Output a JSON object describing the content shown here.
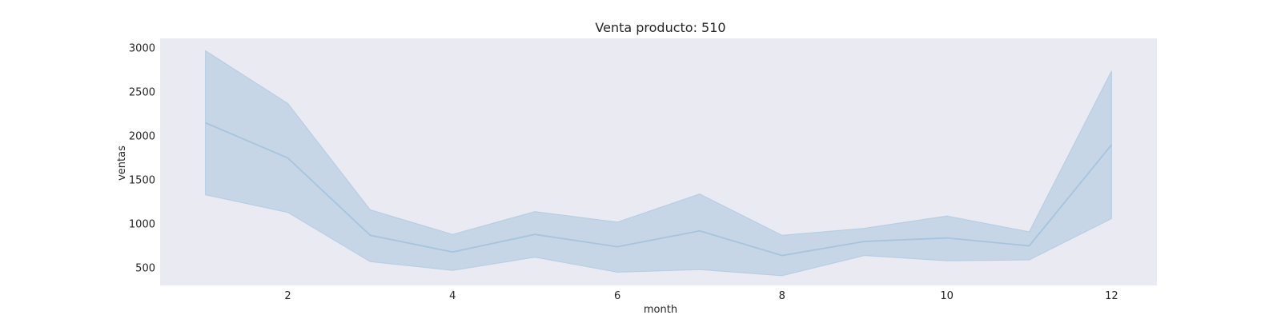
{
  "chart_data": {
    "type": "line",
    "title": "Venta producto: 510",
    "xlabel": "month",
    "ylabel": "ventas",
    "xlim": [
      0.45,
      12.55
    ],
    "ylim": [
      300,
      3110
    ],
    "xticks": [
      2,
      4,
      6,
      8,
      10,
      12
    ],
    "yticks": [
      500,
      1000,
      1500,
      2000,
      2500,
      3000
    ],
    "grid": false,
    "legend": "none",
    "series": [
      {
        "x": [
          1,
          2,
          3,
          4,
          5,
          6,
          7,
          8,
          9,
          10,
          11,
          12
        ],
        "values": [
          2150,
          1750,
          870,
          680,
          880,
          740,
          920,
          640,
          800,
          840,
          750,
          1900
        ],
        "ci_upper": [
          2970,
          2370,
          1160,
          880,
          1140,
          1020,
          1340,
          870,
          950,
          1090,
          910,
          2740
        ],
        "ci_lower": [
          1330,
          1130,
          570,
          470,
          620,
          450,
          480,
          410,
          640,
          580,
          590,
          1060
        ]
      }
    ],
    "colors": {
      "plot_background": "#eaeaf2",
      "line": "#a7c4de",
      "band_fill": "#a7c4de"
    }
  }
}
